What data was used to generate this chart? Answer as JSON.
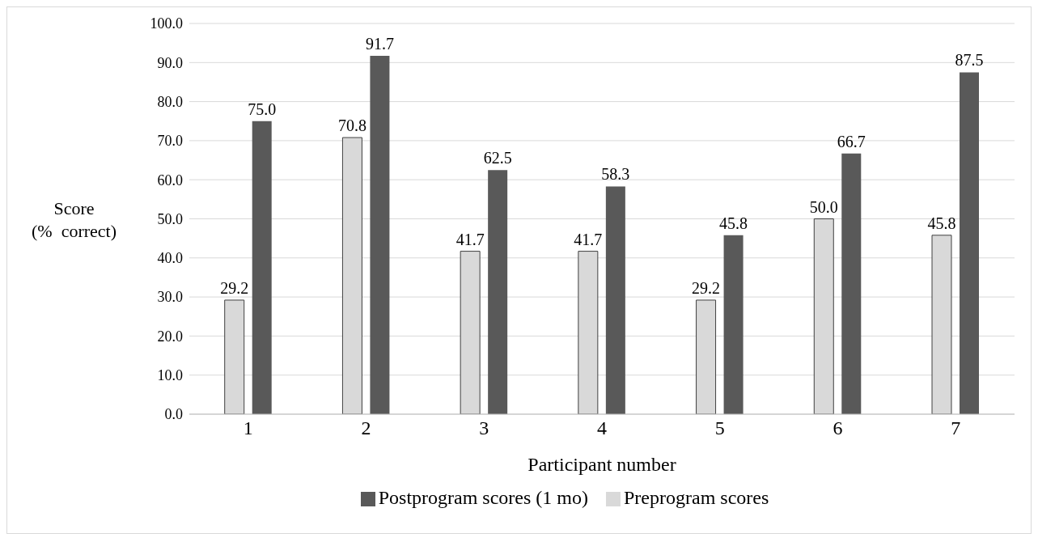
{
  "chart_data": {
    "type": "bar",
    "xlabel": "Participant number",
    "ylabel": "Score\n(%  correct)",
    "categories": [
      "1",
      "2",
      "3",
      "4",
      "5",
      "6",
      "7"
    ],
    "series": [
      {
        "name": "Preprogram scores",
        "color": "#d9d9d9",
        "values": [
          29.2,
          70.8,
          41.7,
          41.7,
          29.2,
          50.0,
          45.8
        ],
        "value_labels": [
          "29.2",
          "70.8",
          "41.7",
          "41.7",
          "29.2",
          "50.0",
          "45.8"
        ]
      },
      {
        "name": "Postprogram scores (1 mo)",
        "color": "#595959",
        "values": [
          75.0,
          91.7,
          62.5,
          58.3,
          45.8,
          66.7,
          87.5
        ],
        "value_labels": [
          "75.0",
          "91.7",
          "62.5",
          "58.3",
          "45.8",
          "66.7",
          "87.5"
        ]
      }
    ],
    "ylim": [
      0,
      100
    ],
    "yticks": [
      {
        "value": 0,
        "label": "0.0"
      },
      {
        "value": 10,
        "label": "10.0"
      },
      {
        "value": 20,
        "label": "20.0"
      },
      {
        "value": 30,
        "label": "30.0"
      },
      {
        "value": 40,
        "label": "40.0"
      },
      {
        "value": 50,
        "label": "50.0"
      },
      {
        "value": 60,
        "label": "60.0"
      },
      {
        "value": 70,
        "label": "70.0"
      },
      {
        "value": 80,
        "label": "80.0"
      },
      {
        "value": 90,
        "label": "90.0"
      },
      {
        "value": 100,
        "label": "100.0"
      }
    ],
    "grid": "y",
    "legend": "bottom"
  }
}
